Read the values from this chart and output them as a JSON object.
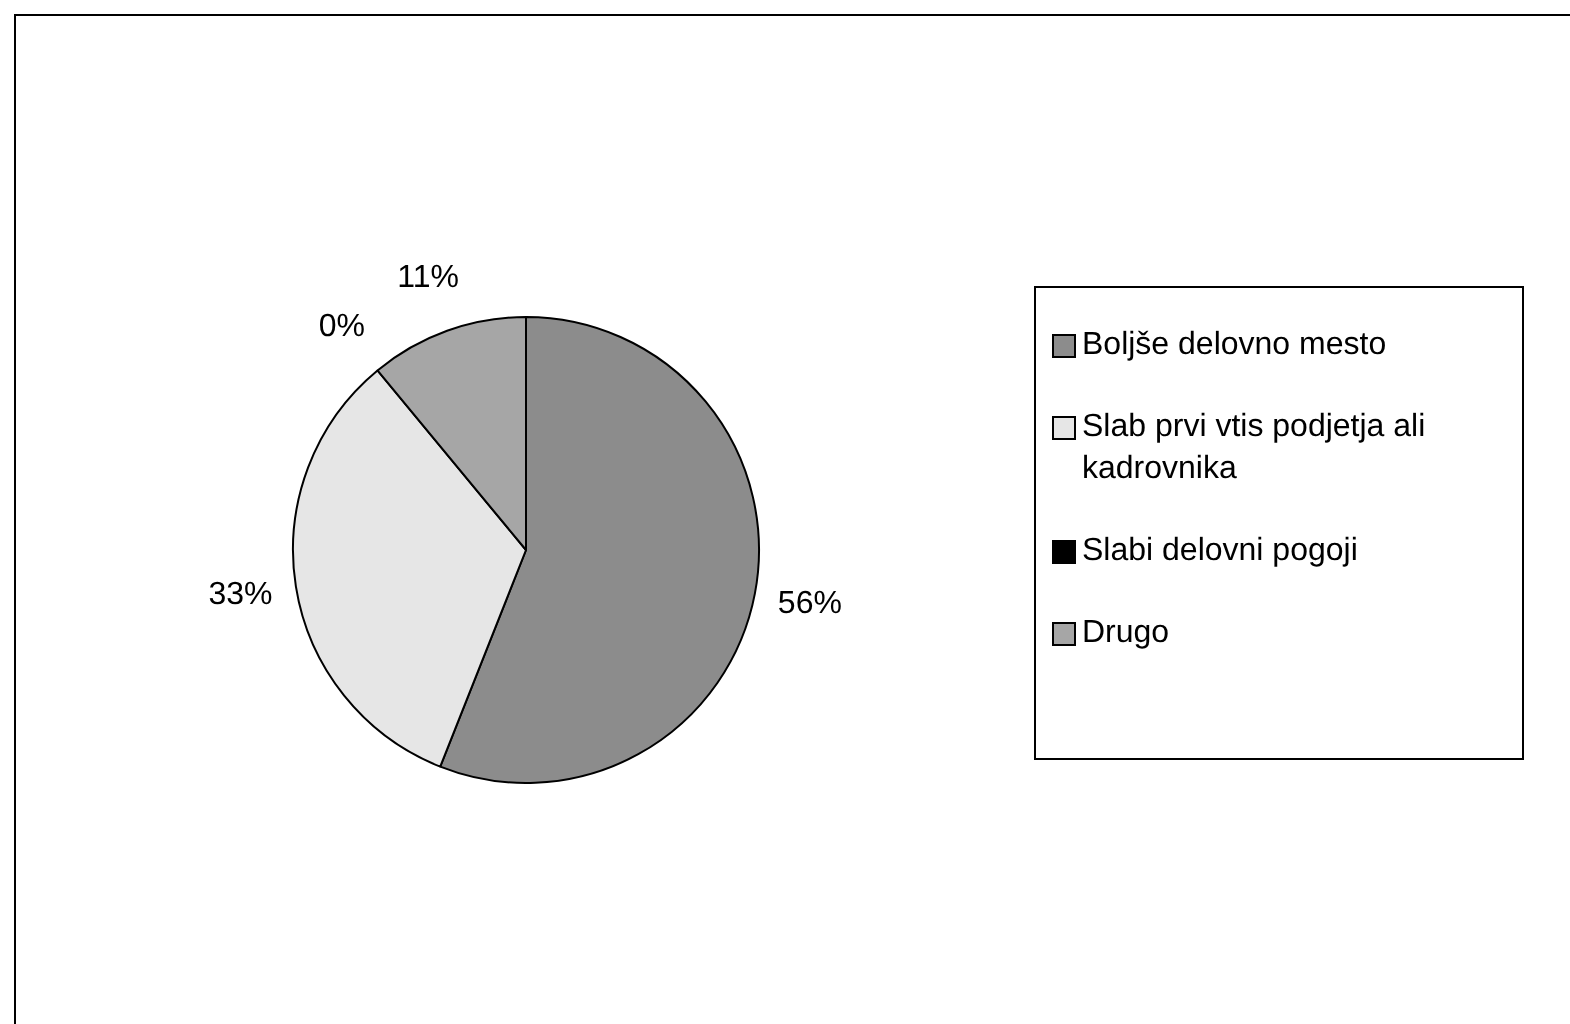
{
  "chart_data": {
    "type": "pie",
    "categories": [
      "Boljše delovno mesto",
      "Slab prvi vtis podjetja ali kadrovnika",
      "Slabi delovni pogoji",
      "Drugo"
    ],
    "values": [
      56,
      33,
      0,
      11
    ],
    "value_labels": [
      "56%",
      "33%",
      "0%",
      "11%"
    ],
    "colors": [
      "#8c8c8c",
      "#e6e6e6",
      "#000000",
      "#a6a6a6"
    ],
    "legend": "right"
  }
}
